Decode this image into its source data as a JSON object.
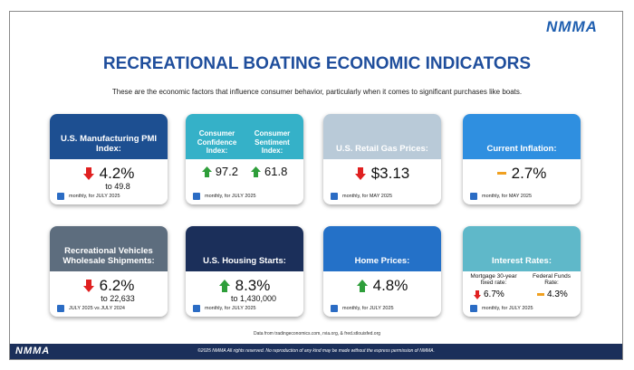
{
  "logo": "NMMA",
  "title": "RECREATIONAL BOATING ECONOMIC INDICATORS",
  "subtitle": "These are the economic factors that influence consumer behavior, particularly when it comes to significant purchases like boats.",
  "cards": [
    {
      "title": "U.S. Manufacturing PMI Index:",
      "value": "4.2%",
      "detail": "to 49.8",
      "period": "monthly, for JULY 2025"
    },
    {
      "items": [
        {
          "label": "Consumer Confidence Index:",
          "value": "97.2"
        },
        {
          "label": "Consumer Sentiment Index:",
          "value": "61.8"
        }
      ],
      "period": "monthly, for JULY 2025"
    },
    {
      "title": "U.S. Retail Gas Prices:",
      "value": "$3.13",
      "period": "monthly, for MAY 2025"
    },
    {
      "title": "Current Inflation:",
      "value": "2.7%",
      "period": "monthly, for MAY 2025"
    },
    {
      "title": "Recreational Vehicles Wholesale Shipments:",
      "value": "6.2%",
      "detail": "to 22,633",
      "period": "JULY 2025 vs JULY 2024"
    },
    {
      "title": "U.S. Housing Starts:",
      "value": "8.3%",
      "detail": "to 1,430,000",
      "period": "monthly, for JULY 2025"
    },
    {
      "title": "Home Prices:",
      "value": "4.8%",
      "period": "monthly, for JULY 2025"
    },
    {
      "title": "Interest Rates:",
      "items": [
        {
          "label": "Mortgage 30-year fixed rate:",
          "value": "6.7%"
        },
        {
          "label": "Federal Funds Rate:",
          "value": "4.3%"
        }
      ],
      "period": "monthly, for JULY 2025"
    }
  ],
  "footer": {
    "sources": "Data from tradingeconomics.com, rvia.org, & fred.stlouisfed.org",
    "logo": "NMMA",
    "copyright": "©2025 NMMA All rights reserved. No reproduction of any kind may be made without the express permission of NMMA."
  }
}
